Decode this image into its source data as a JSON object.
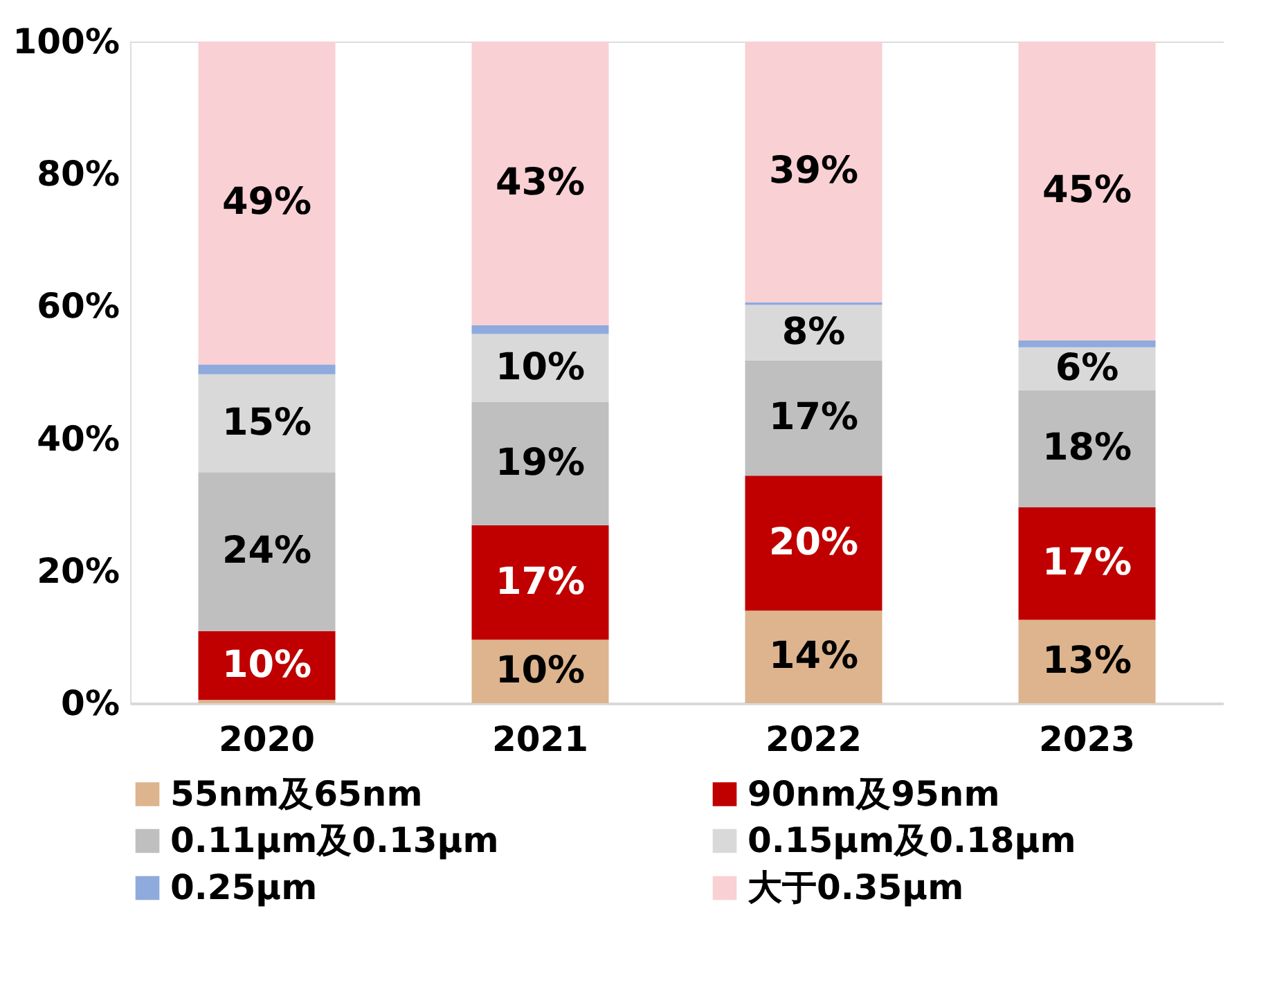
{
  "chart_data": {
    "type": "bar",
    "stacked": true,
    "categories": [
      "2020",
      "2021",
      "2022",
      "2023"
    ],
    "series": [
      {
        "name": "55nm及65nm",
        "color": "#ddb48d",
        "values": [
          0.5,
          9.6,
          14.0,
          12.6
        ],
        "value_labels": [
          null,
          "10%",
          "14%",
          "13%"
        ]
      },
      {
        "name": "90nm及95nm",
        "color": "#c00000",
        "values": [
          10.4,
          17.3,
          20.4,
          17.0
        ],
        "value_labels": [
          "10%",
          "17%",
          "20%",
          "17%"
        ]
      },
      {
        "name": "0.11μm及0.13μm",
        "color": "#bfbfbf",
        "values": [
          24.0,
          18.6,
          17.4,
          17.7
        ],
        "value_labels": [
          "24%",
          "19%",
          "17%",
          "18%"
        ]
      },
      {
        "name": "0.15μm及0.18μm",
        "color": "#d9d9d9",
        "values": [
          14.8,
          10.3,
          8.4,
          6.5
        ],
        "value_labels": [
          "15%",
          "10%",
          "8%",
          "6%"
        ]
      },
      {
        "name": "0.25μm",
        "color": "#8faadc",
        "values": [
          1.5,
          1.3,
          0.4,
          1.0
        ],
        "value_labels": [
          null,
          null,
          null,
          null
        ]
      },
      {
        "name": "大于0.35μm",
        "color": "#f9d0d4",
        "values": [
          48.8,
          42.9,
          39.4,
          45.2
        ],
        "value_labels": [
          "49%",
          "43%",
          "39%",
          "45%"
        ]
      }
    ],
    "ylim": [
      0,
      100
    ],
    "yticks": [
      {
        "value": 0,
        "label": "0%"
      },
      {
        "value": 20,
        "label": "20%"
      },
      {
        "value": 40,
        "label": "40%"
      },
      {
        "value": 60,
        "label": "60%"
      },
      {
        "value": 80,
        "label": "80%"
      },
      {
        "value": 100,
        "label": "100%"
      }
    ],
    "grid": false,
    "legend": "bottom"
  }
}
